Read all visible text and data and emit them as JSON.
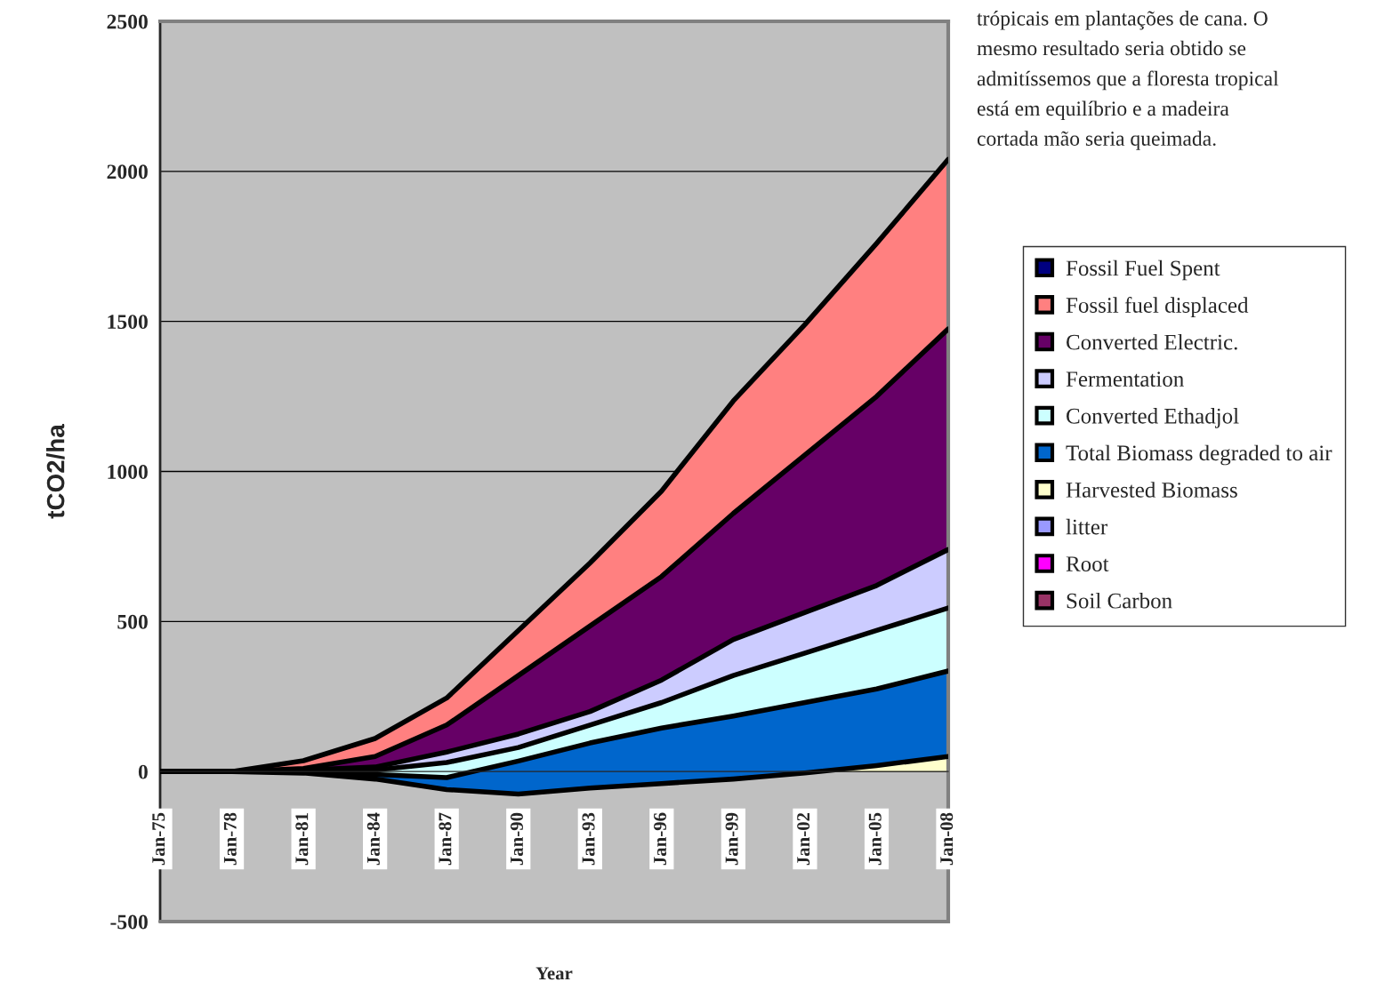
{
  "chart_data": {
    "type": "area",
    "stacked": true,
    "xlabel": "Year",
    "ylabel": "tCO2/ha",
    "annotations": [
      "trópicais em plantações de cana. O\nmesmo resultado seria obtido se\nadmitíssemos que a floresta tropical\nestá em equilíbrio e a madeira\ncortada mão seria queimada."
    ],
    "x": [
      "1975-01",
      "1978-01",
      "1981-01",
      "1984-01",
      "1987-01",
      "1990-01",
      "1993-01",
      "1996-01",
      "1999-01",
      "2002-01",
      "2005-01",
      "2008-01"
    ],
    "xlim": [
      "1975-01",
      "2008-01"
    ],
    "xticks": [
      {
        "value": "1975-01",
        "label": "Jan-75"
      },
      {
        "value": "1978-01",
        "label": "Jan-78"
      },
      {
        "value": "1981-01",
        "label": "Jan-81"
      },
      {
        "value": "1984-01",
        "label": "Jan-84"
      },
      {
        "value": "1987-01",
        "label": "Jan-87"
      },
      {
        "value": "1990-01",
        "label": "Jan-90"
      },
      {
        "value": "1993-01",
        "label": "Jan-93"
      },
      {
        "value": "1996-01",
        "label": "Jan-96"
      },
      {
        "value": "1999-01",
        "label": "Jan-99"
      },
      {
        "value": "2002-01",
        "label": "Jan-02"
      },
      {
        "value": "2005-01",
        "label": "Jan-05"
      },
      {
        "value": "2008-01",
        "label": "Jan-08"
      }
    ],
    "ylim": [
      -500,
      2500
    ],
    "yticks": [
      -500,
      0,
      500,
      1000,
      1500,
      2000,
      2500
    ],
    "grid": "y",
    "legend": "right",
    "series": [
      {
        "name": "Soil Carbon",
        "color": "#993366",
        "values": [
          null,
          null,
          null,
          null,
          null,
          null,
          null,
          null,
          null,
          null,
          null,
          null
        ]
      },
      {
        "name": "Root",
        "color": "#ff00ff",
        "values": [
          null,
          null,
          null,
          null,
          null,
          null,
          null,
          null,
          null,
          null,
          null,
          null
        ]
      },
      {
        "name": "litter",
        "color": "#9999ff",
        "values": [
          null,
          null,
          null,
          null,
          null,
          null,
          null,
          null,
          null,
          null,
          null,
          null
        ]
      },
      {
        "name": "Harvested Biomass",
        "color": "#ffffcc",
        "values": [
          0,
          0,
          -5,
          -25,
          -60,
          -75,
          -55,
          -40,
          -25,
          -5,
          20,
          50
        ]
      },
      {
        "name": "Total Biomass degraded to air",
        "color": "#0066cc",
        "values": [
          0,
          0,
          5,
          15,
          40,
          110,
          150,
          185,
          210,
          235,
          255,
          285
        ]
      },
      {
        "name": "Converted Ethadjol",
        "color": "#ccffff",
        "values": [
          0,
          0,
          3,
          15,
          50,
          45,
          60,
          85,
          135,
          165,
          195,
          210
        ]
      },
      {
        "name": "Fermentation",
        "color": "#ccccff",
        "values": [
          0,
          0,
          2,
          10,
          35,
          45,
          45,
          75,
          120,
          135,
          150,
          195
        ]
      },
      {
        "name": "Converted Electric.",
        "color": "#660066",
        "values": [
          0,
          0,
          5,
          35,
          90,
          195,
          285,
          345,
          420,
          525,
          630,
          735
        ]
      },
      {
        "name": "Fossil fuel displaced",
        "color": "#ff8080",
        "values": [
          0,
          0,
          26,
          60,
          90,
          150,
          210,
          285,
          375,
          435,
          510,
          565
        ]
      },
      {
        "name": "Fossil Fuel Spent",
        "color": "#000080",
        "values": [
          null,
          null,
          null,
          null,
          null,
          null,
          null,
          null,
          null,
          null,
          null,
          null
        ]
      }
    ]
  }
}
